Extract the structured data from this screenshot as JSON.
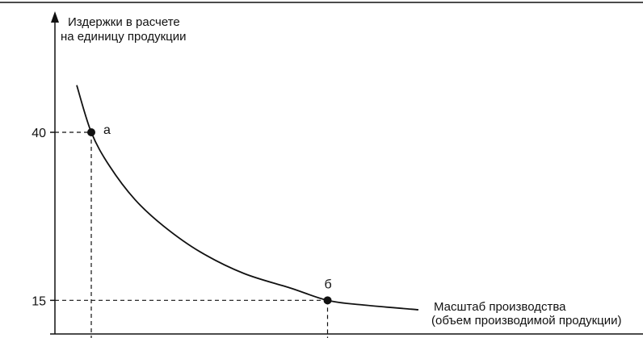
{
  "chart_data": {
    "type": "line",
    "ylabel_lines": [
      "Издержки в расчете",
      "на единицу продукции"
    ],
    "xlabel_lines": [
      "Масштаб производства",
      "(объем производимой продукции)"
    ],
    "yticks": [
      {
        "value": 40,
        "label": "40"
      },
      {
        "value": 15,
        "label": "15"
      }
    ],
    "ylim": [
      10,
      58
    ],
    "xlim": [
      0,
      100
    ],
    "grid": false,
    "curve": {
      "x": [
        6,
        10,
        15,
        22,
        30,
        40,
        52,
        65,
        75,
        85,
        100
      ],
      "y": [
        47,
        40,
        35,
        30,
        26,
        22.2,
        19,
        16.8,
        15,
        14.3,
        13.6
      ]
    },
    "points": [
      {
        "label": "а",
        "x": 10,
        "y": 40
      },
      {
        "label": "б",
        "x": 75,
        "y": 15
      }
    ],
    "colors": {
      "ink": "#111111",
      "background": "#ffffff"
    }
  }
}
